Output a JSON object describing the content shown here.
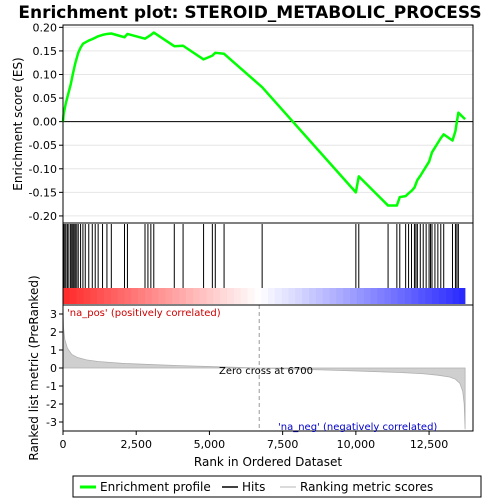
{
  "chart_data": {
    "type": "line",
    "title": "Enrichment plot: STEROID_METABOLIC_PROCESS",
    "colors": {
      "enrichment": "#00ff00",
      "hits": "#000000",
      "metric_fill": "#cfcfcf",
      "pos_label": "#cc0000",
      "neg_label": "#0000cc",
      "zero_line": "#999999"
    },
    "x_axis": {
      "label": "Rank in Ordered Dataset",
      "range": [
        0,
        14000
      ],
      "ticks": [
        0,
        2500,
        5000,
        7500,
        10000,
        12500
      ],
      "tick_labels": [
        "0",
        "2,500",
        "5,000",
        "7,500",
        "10,000",
        "12,500"
      ]
    },
    "es_panel": {
      "ylabel": "Enrichment score (ES)",
      "ylim": [
        -0.215,
        0.205
      ],
      "ticks": [
        -0.2,
        -0.15,
        -0.1,
        -0.05,
        0.0,
        0.05,
        0.1,
        0.15,
        0.2
      ],
      "tick_labels": [
        "-0.20",
        "-0.15",
        "-0.10",
        "-0.05",
        "0.00",
        "0.05",
        "0.10",
        "0.15",
        "0.20"
      ],
      "grid": true
    },
    "metric_panel": {
      "ylabel": "Ranked list metric (PreRanked)",
      "ylim": [
        -3.5,
        3.5
      ],
      "ticks": [
        -3,
        -2,
        -1,
        0,
        1,
        2,
        3
      ],
      "tick_labels": [
        "-3",
        "-2",
        "-1",
        "0",
        "1",
        "2",
        "3"
      ],
      "zero_cross": 6700,
      "zero_cross_label": "Zero cross at 6700",
      "pos_label": "'na_pos' (positively correlated)",
      "neg_label": "'na_neg' (negatively correlated)",
      "curve": [
        [
          0,
          3.3
        ],
        [
          20,
          2.2
        ],
        [
          60,
          1.6
        ],
        [
          150,
          1.1
        ],
        [
          300,
          0.75
        ],
        [
          500,
          0.58
        ],
        [
          800,
          0.45
        ],
        [
          1200,
          0.36
        ],
        [
          2000,
          0.26
        ],
        [
          3000,
          0.19
        ],
        [
          4000,
          0.13
        ],
        [
          5000,
          0.08
        ],
        [
          6000,
          0.03
        ],
        [
          6700,
          0.0
        ],
        [
          7500,
          -0.04
        ],
        [
          8500,
          -0.09
        ],
        [
          9500,
          -0.14
        ],
        [
          10500,
          -0.19
        ],
        [
          11500,
          -0.25
        ],
        [
          12300,
          -0.32
        ],
        [
          12800,
          -0.4
        ],
        [
          13200,
          -0.5
        ],
        [
          13400,
          -0.62
        ],
        [
          13550,
          -0.85
        ],
        [
          13650,
          -1.3
        ],
        [
          13700,
          -2.0
        ],
        [
          13730,
          -3.4
        ]
      ]
    },
    "hits": [
      20,
      60,
      100,
      150,
      200,
      260,
      300,
      340,
      380,
      420,
      470,
      520,
      600,
      680,
      760,
      880,
      1000,
      1100,
      1200,
      1350,
      1500,
      1650,
      2100,
      2200,
      2800,
      2900,
      3000,
      3100,
      3800,
      4100,
      4800,
      5100,
      5200,
      5500,
      6800,
      10000,
      10100,
      11100,
      11400,
      11500,
      11700,
      11800,
      11900,
      12000,
      12050,
      12100,
      12200,
      12300,
      12400,
      12500,
      12550,
      12600,
      12700,
      12800,
      12900,
      13000,
      13300,
      13400,
      13450,
      13500
    ],
    "es_curve": [
      [
        0,
        0.0
      ],
      [
        20,
        0.015
      ],
      [
        60,
        0.028
      ],
      [
        100,
        0.04
      ],
      [
        150,
        0.052
      ],
      [
        200,
        0.064
      ],
      [
        260,
        0.078
      ],
      [
        300,
        0.09
      ],
      [
        340,
        0.102
      ],
      [
        380,
        0.113
      ],
      [
        420,
        0.124
      ],
      [
        470,
        0.135
      ],
      [
        520,
        0.146
      ],
      [
        600,
        0.157
      ],
      [
        680,
        0.165
      ],
      [
        760,
        0.168
      ],
      [
        880,
        0.172
      ],
      [
        1000,
        0.175
      ],
      [
        1100,
        0.178
      ],
      [
        1200,
        0.181
      ],
      [
        1350,
        0.184
      ],
      [
        1500,
        0.186
      ],
      [
        1650,
        0.187
      ],
      [
        2100,
        0.179
      ],
      [
        2200,
        0.186
      ],
      [
        2800,
        0.176
      ],
      [
        2900,
        0.18
      ],
      [
        3000,
        0.184
      ],
      [
        3100,
        0.189
      ],
      [
        3800,
        0.16
      ],
      [
        4100,
        0.161
      ],
      [
        4800,
        0.132
      ],
      [
        5100,
        0.14
      ],
      [
        5200,
        0.146
      ],
      [
        5500,
        0.144
      ],
      [
        6800,
        0.073
      ],
      [
        10000,
        -0.15
      ],
      [
        10100,
        -0.116
      ],
      [
        11100,
        -0.178
      ],
      [
        11400,
        -0.178
      ],
      [
        11500,
        -0.16
      ],
      [
        11700,
        -0.158
      ],
      [
        11800,
        -0.152
      ],
      [
        11900,
        -0.147
      ],
      [
        12000,
        -0.14
      ],
      [
        12050,
        -0.132
      ],
      [
        12100,
        -0.124
      ],
      [
        12200,
        -0.115
      ],
      [
        12300,
        -0.105
      ],
      [
        12400,
        -0.095
      ],
      [
        12500,
        -0.085
      ],
      [
        12550,
        -0.075
      ],
      [
        12600,
        -0.065
      ],
      [
        12700,
        -0.055
      ],
      [
        12800,
        -0.045
      ],
      [
        12900,
        -0.035
      ],
      [
        13000,
        -0.027
      ],
      [
        13300,
        -0.04
      ],
      [
        13400,
        -0.02
      ],
      [
        13450,
        0.0
      ],
      [
        13500,
        0.019
      ],
      [
        13730,
        0.005
      ]
    ],
    "legend": [
      "Enrichment profile",
      "Hits",
      "Ranking metric scores"
    ]
  }
}
